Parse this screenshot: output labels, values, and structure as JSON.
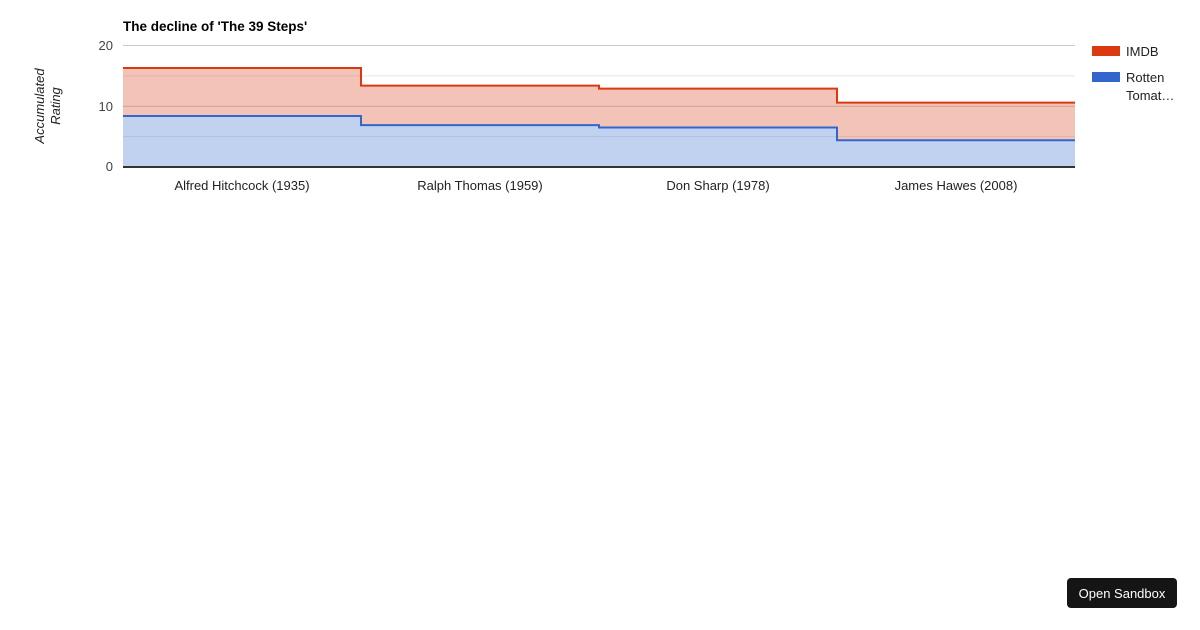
{
  "chart_data": {
    "type": "area",
    "subtype": "stepped-area",
    "stacked": true,
    "title": "The decline of 'The 39 Steps'",
    "xlabel": "",
    "ylabel": "Accumulated Rating",
    "categories": [
      "Alfred Hitchcock (1935)",
      "Ralph Thomas (1959)",
      "Don Sharp (1978)",
      "James Hawes (2008)"
    ],
    "series": [
      {
        "name": "Rotten Tomat…",
        "color": "#3366cc",
        "values": [
          8.4,
          6.9,
          6.5,
          4.4
        ]
      },
      {
        "name": "IMDB",
        "color": "#dc3912",
        "values": [
          7.9,
          6.5,
          6.4,
          6.2
        ]
      }
    ],
    "stacked_tops": [
      16.3,
      13.4,
      12.9,
      10.6
    ],
    "area_opacity": 0.3,
    "ylim": [
      0,
      20
    ],
    "ytick_labels": [
      "20",
      "10",
      "0"
    ],
    "yticks_major": [
      20,
      10
    ],
    "yticks_minor": [
      15,
      5
    ],
    "grid": true,
    "legend_position": "right"
  },
  "legend": {
    "items": [
      {
        "label": "IMDB",
        "color": "#dc3912"
      },
      {
        "label": "Rotten\nTomat…",
        "color": "#3366cc"
      }
    ]
  },
  "colors": {
    "gridline_major": "#cccccc",
    "gridline_minor": "#e6e6e6",
    "baseline": "#333333",
    "title_text": "#000000",
    "tick_text": "#444444",
    "axis_title_text": "#222222"
  },
  "sandbox_button": {
    "label": "Open Sandbox"
  }
}
